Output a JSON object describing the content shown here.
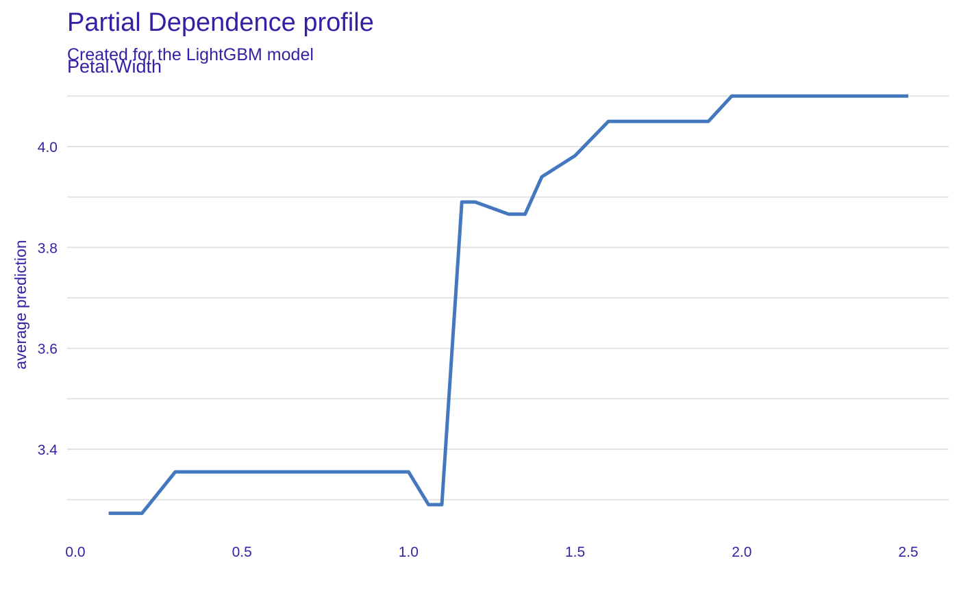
{
  "chart_data": {
    "type": "line",
    "title": "Partial Dependence profile",
    "subtitle": "Created for the LightGBM model",
    "panel_label": "Petal.Width",
    "xlabel": "",
    "ylabel": "average prediction",
    "xlim": [
      0.0,
      2.6
    ],
    "ylim": [
      3.24,
      4.12
    ],
    "x_ticks": [
      0.0,
      0.5,
      1.0,
      1.5,
      2.0,
      2.5
    ],
    "x_tick_labels": [
      "0.0",
      "0.5",
      "1.0",
      "1.5",
      "2.0",
      "2.5"
    ],
    "y_ticks": [
      3.4,
      3.6,
      3.8,
      4.0
    ],
    "y_tick_labels": [
      "3.4",
      "3.6",
      "3.8",
      "4.0"
    ],
    "y_minor_gridlines": [
      3.3,
      3.5,
      3.7,
      3.9,
      4.1
    ],
    "grid": true,
    "legend": "none",
    "colors": {
      "line": "#4378bf",
      "text": "#371ea3",
      "grid": "#e3e3e3"
    },
    "series": [
      {
        "x": [
          0.1,
          0.2,
          0.3,
          0.4,
          0.5,
          0.6,
          0.7,
          0.8,
          0.9,
          1.0,
          1.06,
          1.1,
          1.16,
          1.2,
          1.3,
          1.35,
          1.4,
          1.5,
          1.6,
          1.7,
          1.8,
          1.9,
          1.97,
          2.0,
          2.2,
          2.5
        ],
        "y": [
          3.273,
          3.273,
          3.355,
          3.355,
          3.355,
          3.355,
          3.355,
          3.355,
          3.355,
          3.355,
          3.29,
          3.29,
          3.89,
          3.89,
          3.866,
          3.866,
          3.94,
          3.982,
          4.05,
          4.05,
          4.05,
          4.05,
          4.1,
          4.1,
          4.1,
          4.1
        ]
      }
    ]
  }
}
